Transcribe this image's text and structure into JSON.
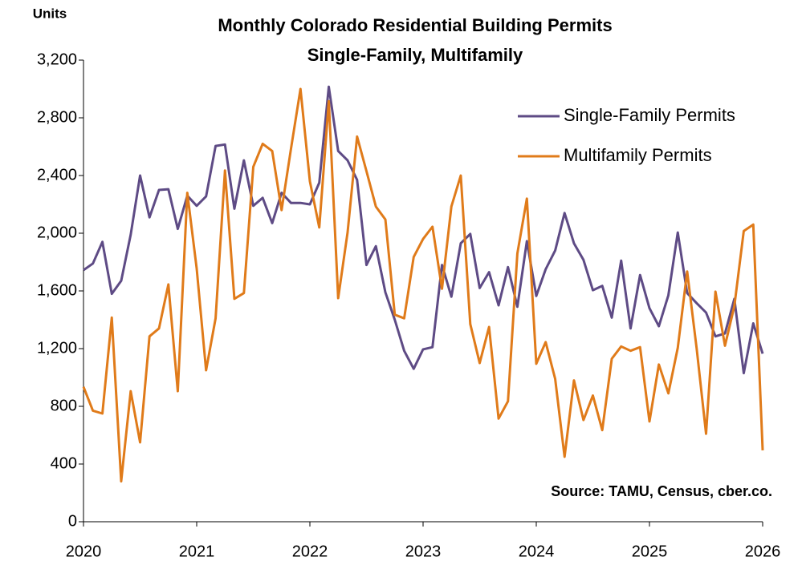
{
  "chart_data": {
    "type": "line",
    "title": "Monthly Colorado Residential Building Permits",
    "subtitle": "Single-Family, Multifamily",
    "y_label": "Units",
    "annotation": "Source: TAMU, Census, cber.co.",
    "x": [
      2020,
      2020.083,
      2020.167,
      2020.25,
      2020.333,
      2020.417,
      2020.5,
      2020.583,
      2020.667,
      2020.75,
      2020.833,
      2020.917,
      2021,
      2021.083,
      2021.167,
      2021.25,
      2021.333,
      2021.417,
      2021.5,
      2021.583,
      2021.667,
      2021.75,
      2021.833,
      2021.917,
      2022,
      2022.083,
      2022.167,
      2022.25,
      2022.333,
      2022.417,
      2022.5,
      2022.583,
      2022.667,
      2022.75,
      2022.833,
      2022.917,
      2023,
      2023.083,
      2023.167,
      2023.25,
      2023.333,
      2023.417,
      2023.5,
      2023.583,
      2023.667,
      2023.75,
      2023.833,
      2023.917,
      2024,
      2024.083,
      2024.167,
      2024.25,
      2024.333,
      2024.417,
      2024.5,
      2024.583,
      2024.667,
      2024.75,
      2024.833,
      2024.917,
      2025,
      2025.083,
      2025.167,
      2025.25,
      2025.333,
      2025.417,
      2025.5,
      2025.583,
      2025.667,
      2025.75,
      2025.833,
      2025.917,
      2026
    ],
    "series": [
      {
        "name": "Single-Family Permits",
        "color": "#5e4b85",
        "values": [
          1744,
          1790,
          1940,
          1580,
          1670,
          1990,
          2400,
          2110,
          2300,
          2305,
          2030,
          2260,
          2190,
          2255,
          2605,
          2615,
          2170,
          2505,
          2190,
          2245,
          2070,
          2280,
          2210,
          2210,
          2200,
          2350,
          3015,
          2570,
          2505,
          2370,
          1780,
          1910,
          1590,
          1400,
          1185,
          1060,
          1195,
          1210,
          1780,
          1560,
          1930,
          1995,
          1620,
          1730,
          1500,
          1765,
          1490,
          1945,
          1565,
          1750,
          1880,
          2140,
          1930,
          1815,
          1605,
          1635,
          1415,
          1810,
          1340,
          1710,
          1480,
          1355,
          1570,
          2005,
          1585,
          1515,
          1450,
          1285,
          1305,
          1545,
          1030,
          1375,
          1165
        ]
      },
      {
        "name": "Multifamily Permits",
        "color": "#e07b1a",
        "values": [
          935,
          770,
          750,
          1415,
          280,
          905,
          550,
          1285,
          1340,
          1645,
          905,
          2280,
          1755,
          1050,
          1410,
          2435,
          1545,
          1585,
          2460,
          2620,
          2570,
          2160,
          2585,
          3000,
          2360,
          2040,
          2915,
          1550,
          2005,
          2670,
          2430,
          2185,
          2095,
          1435,
          1410,
          1835,
          1960,
          2045,
          1615,
          2185,
          2400,
          1370,
          1100,
          1350,
          715,
          835,
          1860,
          2240,
          1095,
          1245,
          990,
          450,
          980,
          705,
          875,
          635,
          1130,
          1215,
          1185,
          1210,
          695,
          1090,
          890,
          1205,
          1735,
          1200,
          610,
          1595,
          1220,
          1495,
          2015,
          2060,
          495
        ]
      }
    ],
    "xlim": [
      2020,
      2026
    ],
    "xticks": [
      2020,
      2021,
      2022,
      2023,
      2024,
      2025,
      2026
    ],
    "ylim": [
      0,
      3200
    ],
    "yticks": [
      0,
      400,
      800,
      {
        "value": 1200,
        "label": "1,200"
      },
      {
        "value": 1600,
        "label": "1,600"
      },
      {
        "value": 2000,
        "label": "2,000"
      },
      {
        "value": 2400,
        "label": "2,400"
      },
      {
        "value": 2800,
        "label": "2,800"
      },
      {
        "value": 3200,
        "label": "3,200"
      }
    ],
    "grid": false,
    "legend": "upper right"
  }
}
